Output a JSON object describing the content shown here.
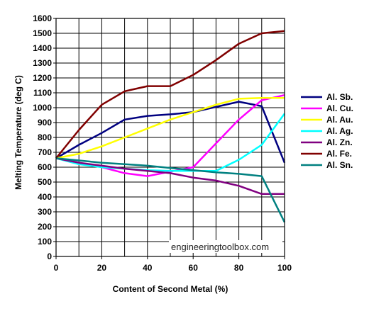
{
  "chart_data": {
    "type": "line",
    "xlabel": "Content of Second Metal (%)",
    "ylabel": "Melting Temperature (deg C)",
    "xlim": [
      0,
      100
    ],
    "ylim": [
      0,
      1600
    ],
    "x_ticks": [
      0,
      20,
      40,
      60,
      80,
      100
    ],
    "x_grid_step": 10,
    "y_ticks": [
      0,
      100,
      200,
      300,
      400,
      500,
      600,
      700,
      800,
      900,
      1000,
      1100,
      1200,
      1300,
      1400,
      1500,
      1600
    ],
    "grid": true,
    "legend_position": "right",
    "watermark": "engineeringtoolbox.com",
    "series": [
      {
        "name": "Al. Sb.",
        "color": "#000080",
        "points": [
          [
            0,
            660
          ],
          [
            10,
            750
          ],
          [
            20,
            830
          ],
          [
            30,
            920
          ],
          [
            40,
            945
          ],
          [
            50,
            955
          ],
          [
            60,
            970
          ],
          [
            70,
            1005
          ],
          [
            80,
            1040
          ],
          [
            90,
            1010
          ],
          [
            100,
            630
          ]
        ]
      },
      {
        "name": "Al. Cu.",
        "color": "#ff00ff",
        "points": [
          [
            0,
            660
          ],
          [
            10,
            630
          ],
          [
            20,
            600
          ],
          [
            30,
            560
          ],
          [
            40,
            540
          ],
          [
            50,
            570
          ],
          [
            60,
            600
          ],
          [
            70,
            760
          ],
          [
            80,
            920
          ],
          [
            90,
            1050
          ],
          [
            100,
            1085
          ]
        ]
      },
      {
        "name": "Al. Au.",
        "color": "#ffff00",
        "points": [
          [
            0,
            660
          ],
          [
            10,
            690
          ],
          [
            20,
            740
          ],
          [
            30,
            800
          ],
          [
            40,
            860
          ],
          [
            50,
            920
          ],
          [
            60,
            970
          ],
          [
            70,
            1020
          ],
          [
            80,
            1060
          ],
          [
            90,
            1065
          ],
          [
            100,
            1065
          ]
        ]
      },
      {
        "name": "Al. Ag.",
        "color": "#00ffff",
        "points": [
          [
            0,
            660
          ],
          [
            10,
            620
          ],
          [
            20,
            600
          ],
          [
            30,
            590
          ],
          [
            40,
            580
          ],
          [
            50,
            575
          ],
          [
            60,
            575
          ],
          [
            70,
            575
          ],
          [
            80,
            650
          ],
          [
            90,
            750
          ],
          [
            100,
            960
          ]
        ]
      },
      {
        "name": "Al. Zn.",
        "color": "#800080",
        "points": [
          [
            0,
            660
          ],
          [
            10,
            630
          ],
          [
            20,
            610
          ],
          [
            30,
            590
          ],
          [
            40,
            575
          ],
          [
            50,
            560
          ],
          [
            60,
            530
          ],
          [
            70,
            510
          ],
          [
            80,
            475
          ],
          [
            90,
            420
          ],
          [
            100,
            420
          ]
        ]
      },
      {
        "name": "Al. Fe.",
        "color": "#800000",
        "points": [
          [
            0,
            660
          ],
          [
            10,
            850
          ],
          [
            20,
            1020
          ],
          [
            30,
            1110
          ],
          [
            40,
            1145
          ],
          [
            50,
            1145
          ],
          [
            60,
            1220
          ],
          [
            70,
            1320
          ],
          [
            80,
            1430
          ],
          [
            90,
            1500
          ],
          [
            100,
            1515
          ]
        ]
      },
      {
        "name": "Al. Sn.",
        "color": "#008080",
        "points": [
          [
            0,
            660
          ],
          [
            10,
            645
          ],
          [
            20,
            630
          ],
          [
            30,
            620
          ],
          [
            40,
            610
          ],
          [
            50,
            595
          ],
          [
            60,
            580
          ],
          [
            70,
            565
          ],
          [
            80,
            555
          ],
          [
            90,
            540
          ],
          [
            100,
            230
          ]
        ]
      }
    ]
  }
}
